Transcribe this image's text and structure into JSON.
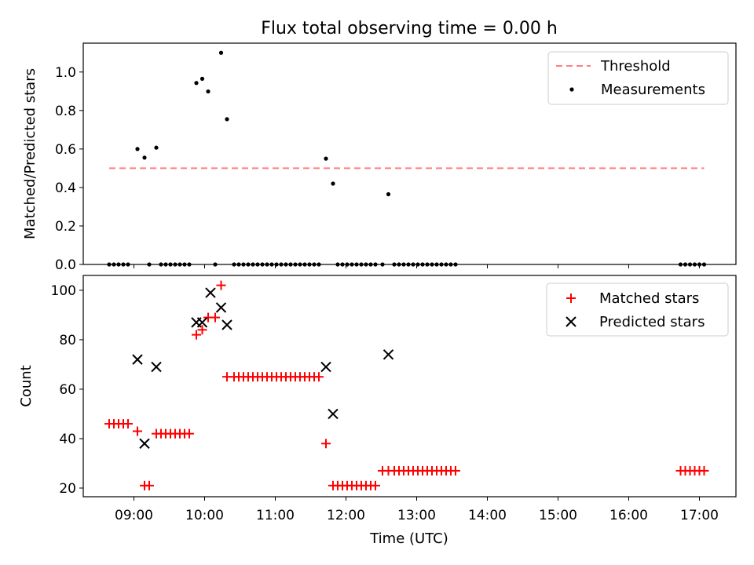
{
  "chart_data": [
    {
      "type": "scatter",
      "title": "Flux total observing time = 0.00 h",
      "xlabel": "",
      "ylabel": "Matched/Predicted stars",
      "xlim": [
        "08:17",
        "17:31"
      ],
      "ylim": [
        0,
        1.15
      ],
      "yticks": [
        0.0,
        0.2,
        0.4,
        0.6,
        0.8,
        1.0
      ],
      "grid": false,
      "legend_position": "top-right",
      "threshold": {
        "name": "Threshold",
        "y": 0.5,
        "x_range": [
          "08:39",
          "17:04"
        ],
        "color": "#ff7f7f",
        "style": "dashed"
      },
      "series": [
        {
          "name": "Measurements",
          "color": "#000000",
          "points": [
            [
              "08:39",
              0
            ],
            [
              "08:43",
              0
            ],
            [
              "08:47",
              0
            ],
            [
              "08:51",
              0
            ],
            [
              "08:55",
              0
            ],
            [
              "09:03",
              0.6
            ],
            [
              "09:09",
              0.555
            ],
            [
              "09:13",
              0
            ],
            [
              "09:19",
              0.607
            ],
            [
              "09:23",
              0
            ],
            [
              "09:27",
              0
            ],
            [
              "09:31",
              0
            ],
            [
              "09:35",
              0
            ],
            [
              "09:39",
              0
            ],
            [
              "09:43",
              0
            ],
            [
              "09:47",
              0
            ],
            [
              "09:53",
              0.943
            ],
            [
              "09:58",
              0.965
            ],
            [
              "10:03",
              0.899
            ],
            [
              "10:09",
              0
            ],
            [
              "10:14",
              1.1
            ],
            [
              "10:19",
              0.755
            ],
            [
              "10:25",
              0
            ],
            [
              "10:29",
              0
            ],
            [
              "10:33",
              0
            ],
            [
              "10:37",
              0
            ],
            [
              "10:41",
              0
            ],
            [
              "10:45",
              0
            ],
            [
              "10:49",
              0
            ],
            [
              "10:53",
              0
            ],
            [
              "10:57",
              0
            ],
            [
              "11:01",
              0
            ],
            [
              "11:05",
              0
            ],
            [
              "11:09",
              0
            ],
            [
              "11:13",
              0
            ],
            [
              "11:17",
              0
            ],
            [
              "11:21",
              0
            ],
            [
              "11:25",
              0
            ],
            [
              "11:29",
              0
            ],
            [
              "11:33",
              0
            ],
            [
              "11:37",
              0
            ],
            [
              "11:43",
              0.55
            ],
            [
              "11:49",
              0.42
            ],
            [
              "11:53",
              0
            ],
            [
              "11:57",
              0
            ],
            [
              "12:01",
              0
            ],
            [
              "12:05",
              0
            ],
            [
              "12:09",
              0
            ],
            [
              "12:13",
              0
            ],
            [
              "12:17",
              0
            ],
            [
              "12:21",
              0
            ],
            [
              "12:25",
              0
            ],
            [
              "12:31",
              0
            ],
            [
              "12:36",
              0.365
            ],
            [
              "12:41",
              0
            ],
            [
              "12:45",
              0
            ],
            [
              "12:49",
              0
            ],
            [
              "12:53",
              0
            ],
            [
              "12:57",
              0
            ],
            [
              "13:01",
              0
            ],
            [
              "13:05",
              0
            ],
            [
              "13:09",
              0
            ],
            [
              "13:13",
              0
            ],
            [
              "13:17",
              0
            ],
            [
              "13:21",
              0
            ],
            [
              "13:25",
              0
            ],
            [
              "13:29",
              0
            ],
            [
              "13:33",
              0
            ],
            [
              "16:44",
              0
            ],
            [
              "16:48",
              0
            ],
            [
              "16:52",
              0
            ],
            [
              "16:56",
              0
            ],
            [
              "17:00",
              0
            ],
            [
              "17:04",
              0
            ]
          ]
        }
      ]
    },
    {
      "type": "scatter",
      "title": "",
      "xlabel": "Time (UTC)",
      "ylabel": "Count",
      "xlim": [
        "08:17",
        "17:31"
      ],
      "ylim": [
        16.5,
        106
      ],
      "yticks": [
        20,
        40,
        60,
        80,
        100
      ],
      "xticks": [
        "09:00",
        "10:00",
        "11:00",
        "12:00",
        "13:00",
        "14:00",
        "15:00",
        "16:00",
        "17:00"
      ],
      "grid": false,
      "legend_position": "top-right",
      "series": [
        {
          "name": "Matched stars",
          "marker": "plus",
          "color": "#ff0000",
          "points": [
            [
              "08:39",
              46
            ],
            [
              "08:43",
              46
            ],
            [
              "08:47",
              46
            ],
            [
              "08:51",
              46
            ],
            [
              "08:55",
              46
            ],
            [
              "09:03",
              43
            ],
            [
              "09:09",
              21
            ],
            [
              "09:13",
              21
            ],
            [
              "09:19",
              42
            ],
            [
              "09:23",
              42
            ],
            [
              "09:27",
              42
            ],
            [
              "09:31",
              42
            ],
            [
              "09:35",
              42
            ],
            [
              "09:39",
              42
            ],
            [
              "09:43",
              42
            ],
            [
              "09:47",
              42
            ],
            [
              "09:53",
              82
            ],
            [
              "09:58",
              84
            ],
            [
              "10:03",
              89
            ],
            [
              "10:09",
              89
            ],
            [
              "10:14",
              102
            ],
            [
              "10:19",
              65
            ],
            [
              "10:25",
              65
            ],
            [
              "10:29",
              65
            ],
            [
              "10:33",
              65
            ],
            [
              "10:37",
              65
            ],
            [
              "10:41",
              65
            ],
            [
              "10:45",
              65
            ],
            [
              "10:49",
              65
            ],
            [
              "10:53",
              65
            ],
            [
              "10:57",
              65
            ],
            [
              "11:01",
              65
            ],
            [
              "11:05",
              65
            ],
            [
              "11:09",
              65
            ],
            [
              "11:13",
              65
            ],
            [
              "11:17",
              65
            ],
            [
              "11:21",
              65
            ],
            [
              "11:25",
              65
            ],
            [
              "11:29",
              65
            ],
            [
              "11:33",
              65
            ],
            [
              "11:37",
              65
            ],
            [
              "11:43",
              38
            ],
            [
              "11:49",
              21
            ],
            [
              "11:53",
              21
            ],
            [
              "11:57",
              21
            ],
            [
              "12:01",
              21
            ],
            [
              "12:05",
              21
            ],
            [
              "12:09",
              21
            ],
            [
              "12:13",
              21
            ],
            [
              "12:17",
              21
            ],
            [
              "12:21",
              21
            ],
            [
              "12:25",
              21
            ],
            [
              "12:31",
              27
            ],
            [
              "12:36",
              27
            ],
            [
              "12:41",
              27
            ],
            [
              "12:45",
              27
            ],
            [
              "12:49",
              27
            ],
            [
              "12:53",
              27
            ],
            [
              "12:57",
              27
            ],
            [
              "13:01",
              27
            ],
            [
              "13:05",
              27
            ],
            [
              "13:09",
              27
            ],
            [
              "13:13",
              27
            ],
            [
              "13:17",
              27
            ],
            [
              "13:21",
              27
            ],
            [
              "13:25",
              27
            ],
            [
              "13:29",
              27
            ],
            [
              "13:33",
              27
            ],
            [
              "16:44",
              27
            ],
            [
              "16:48",
              27
            ],
            [
              "16:52",
              27
            ],
            [
              "16:56",
              27
            ],
            [
              "17:00",
              27
            ],
            [
              "17:04",
              27
            ]
          ]
        },
        {
          "name": "Predicted stars",
          "marker": "x",
          "color": "#000000",
          "points": [
            [
              "09:03",
              72
            ],
            [
              "09:09",
              38
            ],
            [
              "09:19",
              69
            ],
            [
              "09:53",
              87
            ],
            [
              "09:58",
              87
            ],
            [
              "10:05",
              99
            ],
            [
              "10:14",
              93
            ],
            [
              "10:19",
              86
            ],
            [
              "11:43",
              69
            ],
            [
              "11:49",
              50
            ],
            [
              "12:36",
              74
            ]
          ]
        }
      ]
    }
  ]
}
